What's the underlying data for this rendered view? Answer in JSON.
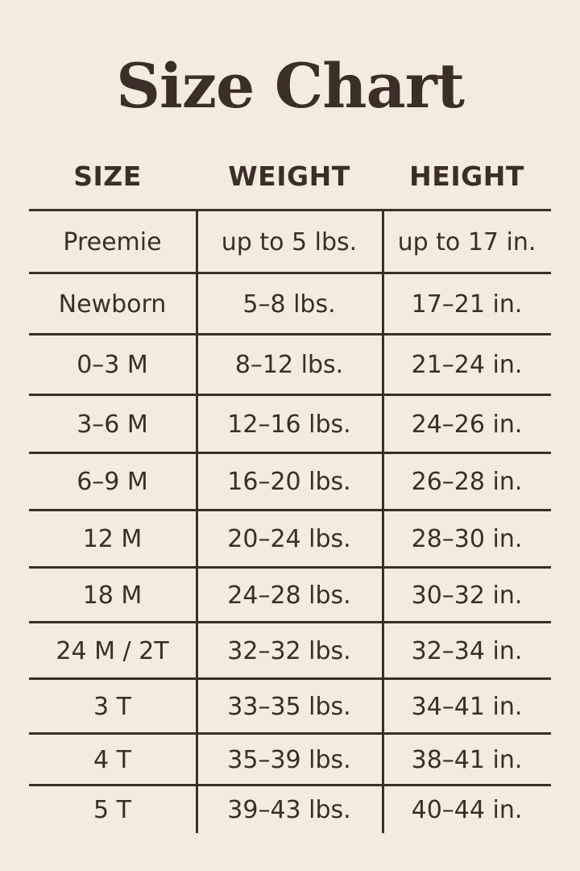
{
  "title": "Size Chart",
  "headers": [
    "SIZE",
    "WEIGHT",
    "HEIGHT"
  ],
  "rows": [
    [
      "Preemie",
      "up to 5 lbs.",
      "up to 17 in."
    ],
    [
      "Newborn",
      "5–8 lbs.",
      "17–21 in."
    ],
    [
      "0–3 M",
      "8–12 lbs.",
      "21–24 in."
    ],
    [
      "3–6 M",
      "12–16 lbs.",
      "24–26 in."
    ],
    [
      "6–9 M",
      "16–20 lbs.",
      "26–28 in."
    ],
    [
      "12 M",
      "20–24 lbs.",
      "28–30 in."
    ],
    [
      "18 M",
      "24–28 lbs.",
      "30–32 in."
    ],
    [
      "24 M / 2T",
      "32–32 lbs.",
      "32–34 in."
    ],
    [
      "3 T",
      "33–35 lbs.",
      "34–41 in."
    ],
    [
      "4 T",
      "35–39 lbs.",
      "38–41 in."
    ],
    [
      "5 T",
      "39–43 lbs.",
      "40–44 in."
    ]
  ],
  "colors": {
    "background": "#f3ebe0",
    "text": "#3a2e26"
  }
}
